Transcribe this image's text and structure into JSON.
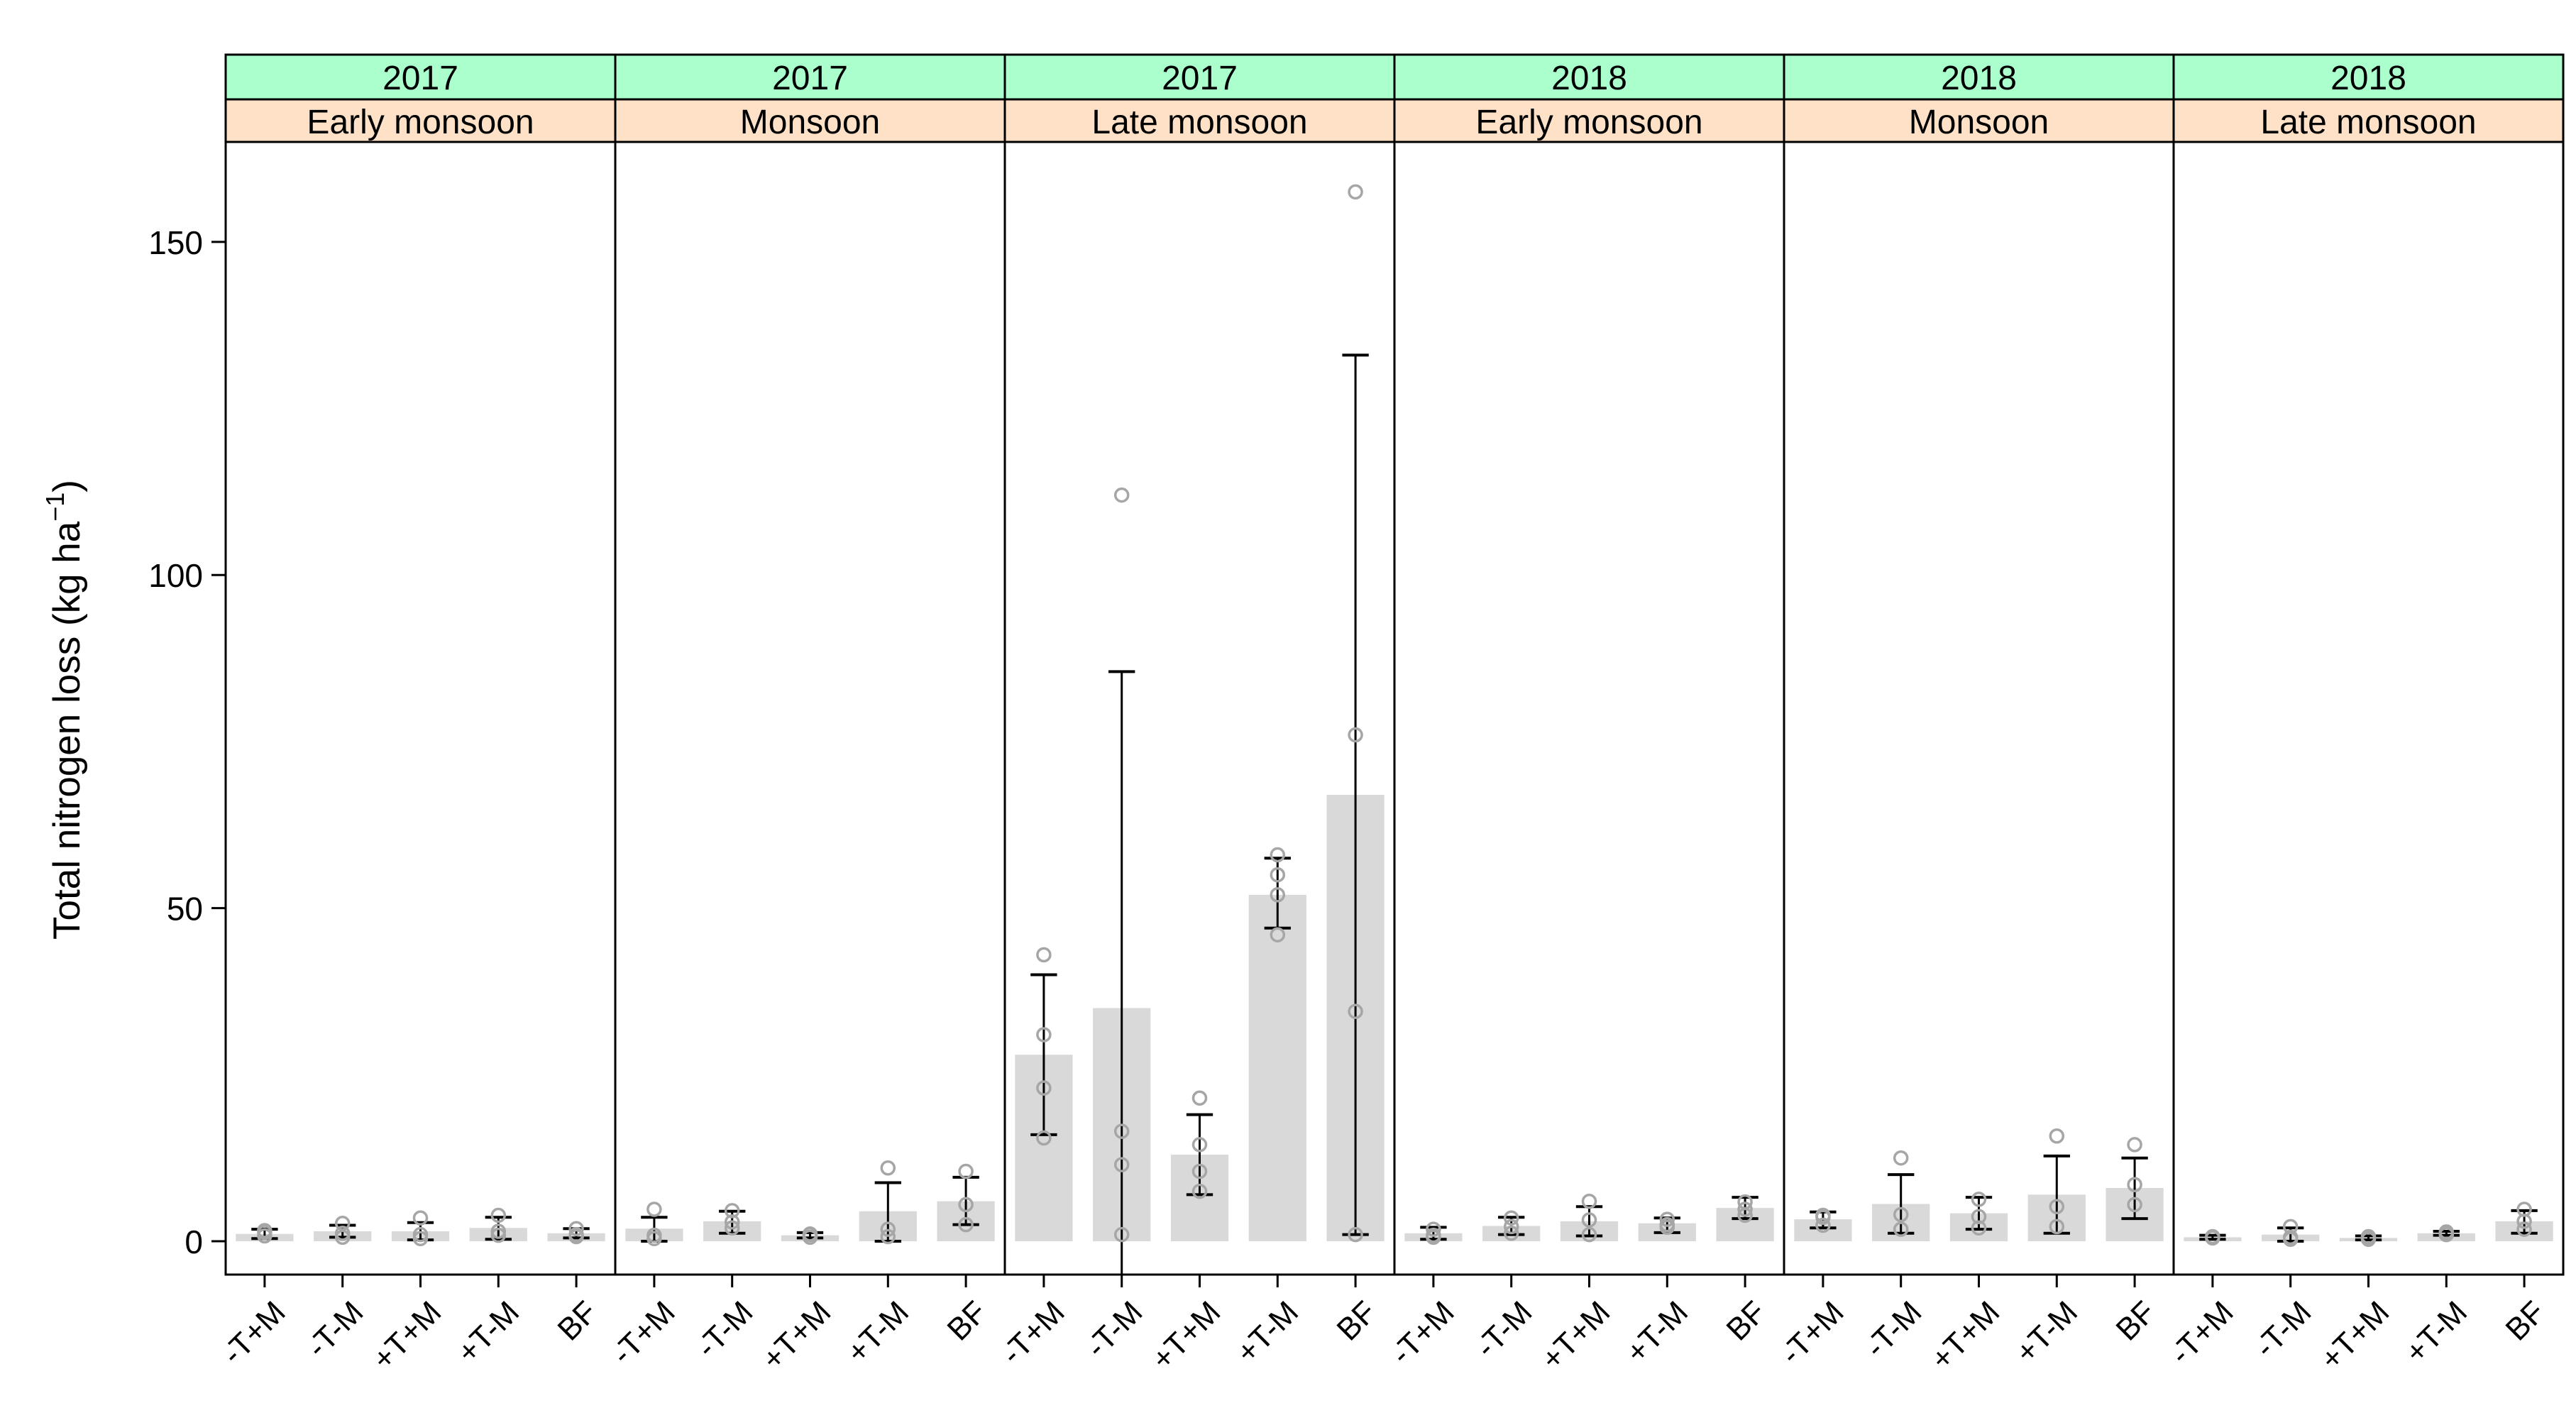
{
  "chart_data": {
    "type": "bar",
    "ylabel_main": "Total nitrogen loss (kg ha",
    "ylabel_sup": "−1",
    "ylabel_close": ")",
    "ylim": [
      -5,
      165
    ],
    "yticks": [
      0,
      50,
      100,
      150
    ],
    "categories": [
      "-T+M",
      "-T-M",
      "+T+M",
      "+T-M",
      "BF"
    ],
    "colors": {
      "strip_year": "#aaffcc",
      "strip_season": "#ffe1c8",
      "bar": "#d9d9d9",
      "point": "#a6a6a6",
      "axis": "#000000"
    },
    "panels": [
      {
        "year": "2017",
        "season": "Early monsoon",
        "means": [
          1.1,
          1.5,
          1.5,
          2.0,
          1.2
        ],
        "err_low": [
          0.4,
          0.6,
          0.2,
          0.3,
          0.5
        ],
        "err_high": [
          1.8,
          2.4,
          2.8,
          3.6,
          1.9
        ],
        "points": [
          [
            0.8,
            1.6,
            1.3
          ],
          [
            0.6,
            2.7,
            1.2
          ],
          [
            0.4,
            3.5,
            1.0
          ],
          [
            0.9,
            3.9,
            1.5
          ],
          [
            0.7,
            1.9,
            1.0
          ]
        ]
      },
      {
        "year": "2017",
        "season": "Monsoon",
        "means": [
          1.9,
          3.0,
          0.9,
          4.5,
          6.0
        ],
        "err_low": [
          0.0,
          1.2,
          0.5,
          0.0,
          2.5
        ],
        "err_high": [
          3.6,
          4.5,
          1.3,
          8.8,
          9.6
        ],
        "points": [
          [
            4.8,
            0.9,
            0.4
          ],
          [
            4.6,
            2.0,
            2.9
          ],
          [
            0.6,
            1.1,
            1.0
          ],
          [
            11.0,
            1.8,
            0.7
          ],
          [
            10.5,
            5.5,
            2.5
          ]
        ]
      },
      {
        "year": "2017",
        "season": "Late monsoon",
        "means": [
          28.0,
          35.0,
          13.0,
          52.0,
          67.0
        ],
        "err_low": [
          16.0,
          -15.0,
          7.0,
          47.0,
          1.0
        ],
        "err_high": [
          40.0,
          85.5,
          19.0,
          57.5,
          133.0
        ],
        "points": [
          [
            43.0,
            31.0,
            23.0,
            15.5
          ],
          [
            112.0,
            16.5,
            11.5,
            1.0
          ],
          [
            21.5,
            14.5,
            10.5,
            7.5
          ],
          [
            58.0,
            55.0,
            52.0,
            46.0
          ],
          [
            157.5,
            76.0,
            34.5,
            1.0
          ]
        ]
      },
      {
        "year": "2018",
        "season": "Early monsoon",
        "means": [
          1.2,
          2.3,
          3.0,
          2.7,
          5.0
        ],
        "err_low": [
          0.3,
          1.0,
          0.8,
          1.3,
          3.4
        ],
        "err_high": [
          2.1,
          3.6,
          5.2,
          3.5,
          6.6
        ],
        "points": [
          [
            1.8,
            0.6,
            0.9
          ],
          [
            3.5,
            1.2,
            2.2
          ],
          [
            6.0,
            3.2,
            1.0
          ],
          [
            3.3,
            2.1,
            2.5
          ],
          [
            5.9,
            4.8,
            3.9
          ]
        ]
      },
      {
        "year": "2018",
        "season": "Monsoon",
        "means": [
          3.3,
          5.6,
          4.2,
          7.0,
          8.0
        ],
        "err_low": [
          2.0,
          1.2,
          1.8,
          1.2,
          3.4
        ],
        "err_high": [
          4.4,
          10.0,
          6.6,
          12.8,
          12.5
        ],
        "points": [
          [
            3.9,
            2.4,
            3.6
          ],
          [
            12.5,
            4.0,
            1.8
          ],
          [
            6.3,
            3.7,
            2.0
          ],
          [
            15.8,
            5.2,
            2.2
          ],
          [
            14.5,
            8.5,
            5.5
          ]
        ]
      },
      {
        "year": "2018",
        "season": "Late monsoon",
        "means": [
          0.6,
          1.0,
          0.5,
          1.2,
          3.0
        ],
        "err_low": [
          0.3,
          0.0,
          0.2,
          0.9,
          1.2
        ],
        "err_high": [
          0.9,
          2.0,
          0.8,
          1.5,
          4.6
        ],
        "points": [
          [
            0.7,
            0.5,
            0.6
          ],
          [
            2.2,
            0.3,
            0.6
          ],
          [
            0.5,
            0.3,
            0.7
          ],
          [
            1.3,
            1.0,
            1.4
          ],
          [
            4.8,
            3.0,
            1.8
          ]
        ]
      }
    ]
  }
}
